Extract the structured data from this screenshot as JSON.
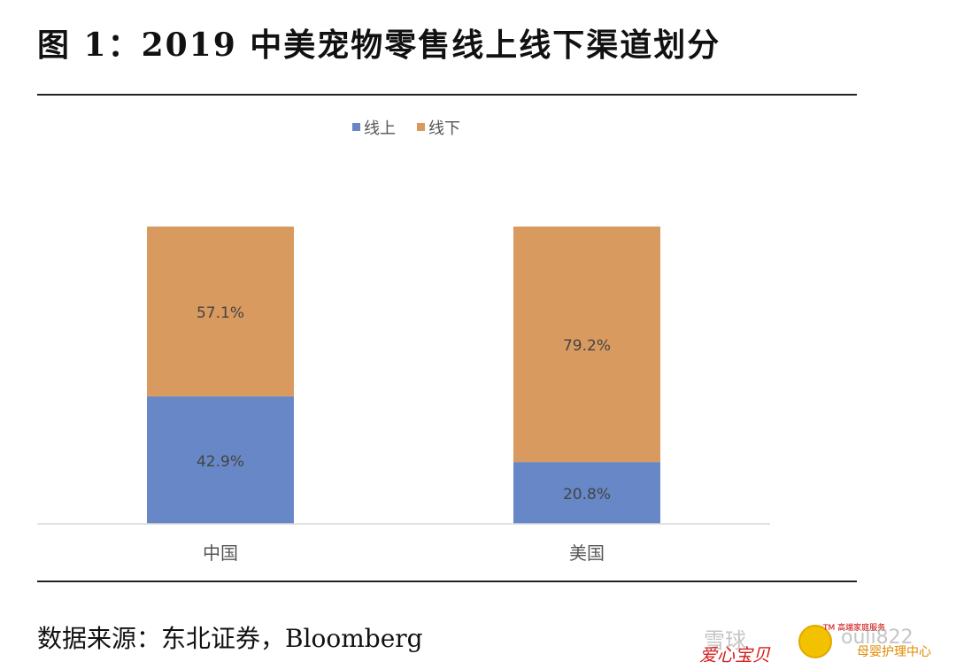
{
  "figure": {
    "title": "图 1：2019 中美宠物零售线上线下渠道划分",
    "source": "数据来源：东北证券，Bloomberg"
  },
  "watermark": {
    "platform": "雪球",
    "id": "ouli822",
    "brand": "爱心宝贝",
    "tm_line": "TM 高端家庭服务",
    "sub": "母婴护理中心"
  },
  "colors": {
    "online": "#6787c6",
    "offline": "#d99a5f",
    "label": "#444444",
    "axis": "#d9d9d9"
  },
  "chart_data": {
    "type": "bar",
    "stacked": true,
    "percent_stacked": true,
    "categories": [
      "中国",
      "美国"
    ],
    "series": [
      {
        "name": "线上",
        "values": [
          42.9,
          20.8
        ],
        "labels": [
          "42.9%",
          "20.8%"
        ]
      },
      {
        "name": "线下",
        "values": [
          57.1,
          79.2
        ],
        "labels": [
          "57.1%",
          "79.2%"
        ]
      }
    ],
    "ylim": [
      0,
      100
    ],
    "title": "",
    "xlabel": "",
    "ylabel": "",
    "grid": false,
    "legend_position": "top-center",
    "value_unit": "%"
  }
}
